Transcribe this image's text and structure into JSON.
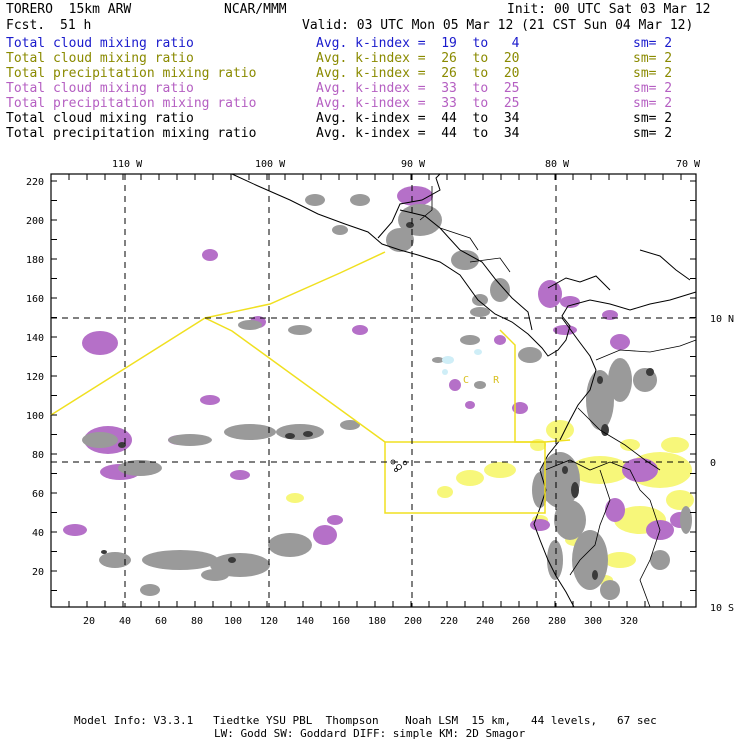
{
  "header": {
    "model": "TORERO  15km ARW",
    "center": "NCAR/MMM",
    "init": "Init: 00 UTC Sat 03 Mar 12",
    "fcst_label": "Fcst.",
    "fcst_hours": "51 h",
    "valid": "Valid: 03 UTC Mon 05 Mar 12 (21 CST Sun 04 Mar 12)"
  },
  "legend": [
    {
      "field": "Total cloud mixing ratio",
      "kindex": "Avg. k-index =  19  to   4",
      "sm": "sm= 2",
      "color": "#1a1acc"
    },
    {
      "field": "Total cloud mixing ratio",
      "kindex": "Avg. k-index =  26  to  20",
      "sm": "sm= 2",
      "color": "#8a8a00"
    },
    {
      "field": "Total precipitation mixing ratio",
      "kindex": "Avg. k-index =  26  to  20",
      "sm": "sm= 2",
      "color": "#8a8a00"
    },
    {
      "field": "Total cloud mixing ratio",
      "kindex": "Avg. k-index =  33  to  25",
      "sm": "sm= 2",
      "color": "#b55fc2"
    },
    {
      "field": "Total precipitation mixing ratio",
      "kindex": "Avg. k-index =  33  to  25",
      "sm": "sm= 2",
      "color": "#b55fc2"
    },
    {
      "field": "Total cloud mixing ratio",
      "kindex": "Avg. k-index =  44  to  34",
      "sm": "sm= 2",
      "color": "#000000"
    },
    {
      "field": "Total precipitation mixing ratio",
      "kindex": "Avg. k-index =  44  to  34",
      "sm": "sm= 2",
      "color": "#000000"
    }
  ],
  "axes": {
    "top_lon": [
      "110 W",
      "100 W",
      "90 W",
      "80 W",
      "70 W"
    ],
    "right_lat": [
      "10 N",
      "0",
      "10 S"
    ],
    "left_y": [
      "220",
      "200",
      "180",
      "160",
      "140",
      "120",
      "100",
      "80",
      "60",
      "40",
      "20"
    ],
    "bottom_x": [
      "20",
      "40",
      "60",
      "80",
      "100",
      "120",
      "140",
      "160",
      "180",
      "200",
      "220",
      "240",
      "260",
      "280",
      "300",
      "320"
    ]
  },
  "map_labels": {
    "cr": "C    R"
  },
  "colors": {
    "gray": "#9a9a9a",
    "dark": "#3a3a3a",
    "purple": "#b570c8",
    "yellow": "#f7f77a",
    "lightblue": "#cfeef7",
    "zone": "#f0e020"
  },
  "footer": {
    "line1": "Model Info: V3.3.1   Tiedtke YSU PBL  Thompson    Noah LSM  15 km,   44 levels,   67 sec",
    "line2": "LW: Godd SW: Goddard DIFF: simple KM: 2D Smagor"
  }
}
